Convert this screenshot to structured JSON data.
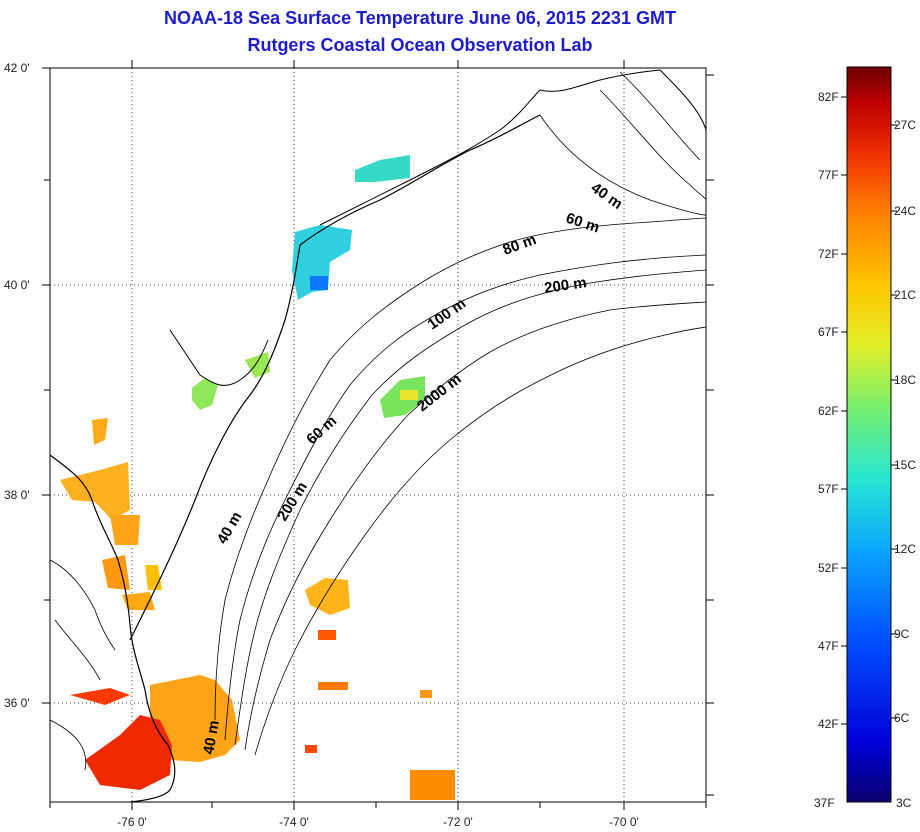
{
  "title": {
    "line1": "NOAA-18 Sea Surface Temperature June 06, 2015 2231 GMT",
    "line2": "Rutgers Coastal Ocean Observation Lab",
    "color": "#1c1cc8"
  },
  "map": {
    "lon_ticks": [
      "-76 0'",
      "-74 0'",
      "-72 0'",
      "-70 0'"
    ],
    "lat_ticks": [
      "42 0'",
      "40 0'",
      "38 0'",
      "36 0'"
    ],
    "depth_labels": [
      "40 m",
      "60 m",
      "80 m",
      "200 m",
      "100 m",
      "2000 m",
      "60 m",
      "200 m",
      "40 m",
      "40 m"
    ]
  },
  "colorbar": {
    "fahrenheit": [
      "82F",
      "77F",
      "72F",
      "67F",
      "62F",
      "57F",
      "52F",
      "47F",
      "42F",
      "37F"
    ],
    "celsius": [
      "27C",
      "24C",
      "21C",
      "18C",
      "15C",
      "12C",
      "9C",
      "6C",
      "3C"
    ],
    "colors": [
      "#0a006e",
      "#0000d8",
      "#0050ff",
      "#0aa5ff",
      "#28e6d2",
      "#7bef6a",
      "#e0ef28",
      "#ffc800",
      "#ff8200",
      "#f03200",
      "#c00000",
      "#6e0000"
    ]
  }
}
